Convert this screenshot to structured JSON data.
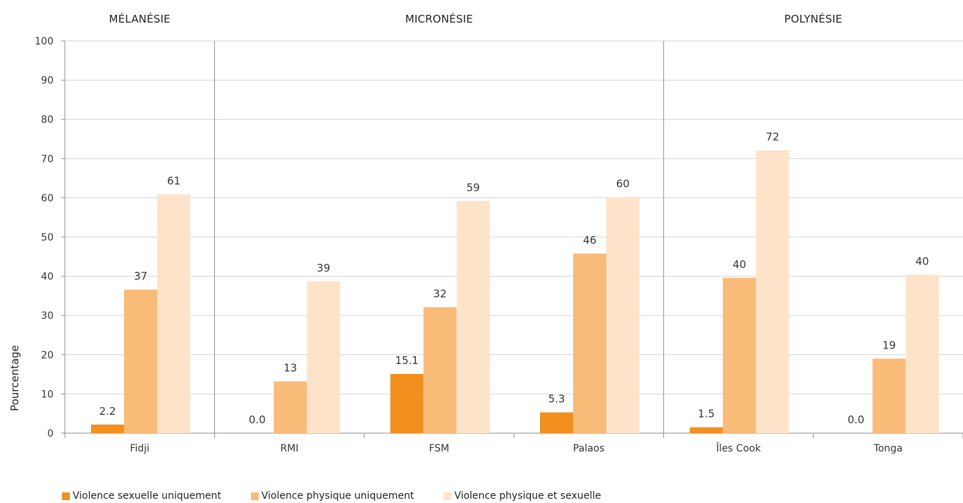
{
  "chart_data": {
    "type": "bar",
    "title": "",
    "ylabel": "Pourcentage",
    "ylim": [
      0,
      100
    ],
    "yticks": [
      0,
      10,
      20,
      30,
      40,
      50,
      60,
      70,
      80,
      90,
      100
    ],
    "grid": true,
    "legend_position": "bottom-left",
    "categories": [
      "Fidji",
      "RMI",
      "FSM",
      "Palaos",
      "Îles Cook",
      "Tonga"
    ],
    "groups": [
      {
        "label": "MÉLANÉSIE",
        "categories": [
          "Fidji"
        ]
      },
      {
        "label": "MICRONÉSIE",
        "categories": [
          "RMI",
          "FSM",
          "Palaos"
        ]
      },
      {
        "label": "POLYNÉSIE",
        "categories": [
          "Îles Cook",
          "Tonga"
        ]
      }
    ],
    "series": [
      {
        "name": "Violence sexuelle uniquement",
        "color": "#f2901e",
        "values": [
          2.2,
          0.0,
          15.1,
          5.3,
          1.5,
          0.0
        ],
        "labels": [
          "2.2",
          "0.0",
          "15.1",
          "5.3",
          "1.5",
          "0.0"
        ]
      },
      {
        "name": "Violence physique uniquement",
        "color": "#f9bb78",
        "values": [
          36.6,
          13.2,
          32.1,
          45.8,
          39.6,
          19.0
        ],
        "labels": [
          "37",
          "13",
          "32",
          "46",
          "40",
          "19"
        ]
      },
      {
        "name": "Violence physique et sexuelle",
        "color": "#fde3c9",
        "values": [
          60.9,
          38.7,
          59.2,
          60.2,
          72.1,
          40.4
        ],
        "labels": [
          "61",
          "39",
          "59",
          "60",
          "72",
          "40"
        ]
      }
    ]
  }
}
